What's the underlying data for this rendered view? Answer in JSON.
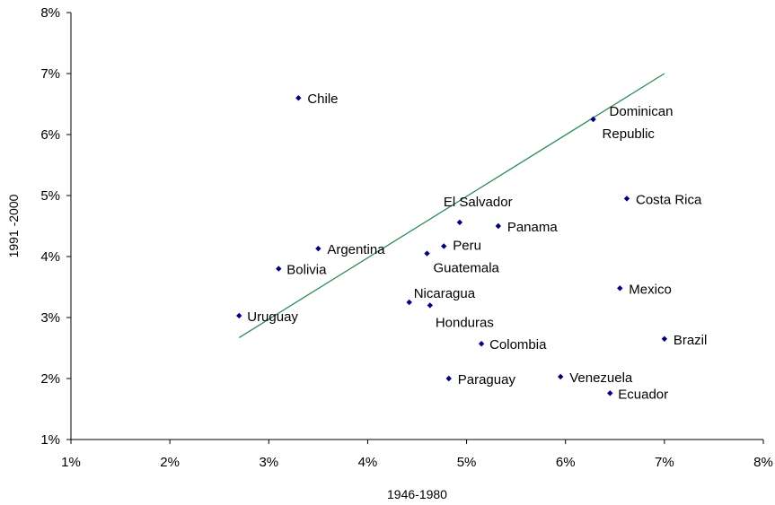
{
  "chart_data": {
    "type": "scatter",
    "title": "",
    "xlabel": "1946-1980",
    "ylabel": "1991 -2000",
    "xlim": [
      1,
      8
    ],
    "ylim": [
      1,
      8
    ],
    "x_ticks": [
      "1%",
      "2%",
      "3%",
      "4%",
      "5%",
      "6%",
      "7%",
      "8%"
    ],
    "y_ticks": [
      "1%",
      "2%",
      "3%",
      "4%",
      "5%",
      "6%",
      "7%",
      "8%"
    ],
    "grid": false,
    "legend": "none",
    "marker_color": "#000080",
    "line_color": "#2e8b57",
    "points": [
      {
        "label": "Chile",
        "x": 3.3,
        "y": 6.6
      },
      {
        "label": "Dominican Republic",
        "x": 6.28,
        "y": 6.25
      },
      {
        "label": "Costa Rica",
        "x": 6.62,
        "y": 4.95
      },
      {
        "label": "El Salvador",
        "x": 4.93,
        "y": 4.56
      },
      {
        "label": "Panama",
        "x": 5.32,
        "y": 4.5
      },
      {
        "label": "Argentina",
        "x": 3.5,
        "y": 4.13
      },
      {
        "label": "Peru",
        "x": 4.77,
        "y": 4.17
      },
      {
        "label": "Guatemala",
        "x": 4.6,
        "y": 4.05
      },
      {
        "label": "Bolivia",
        "x": 3.1,
        "y": 3.8
      },
      {
        "label": "Mexico",
        "x": 6.55,
        "y": 3.48
      },
      {
        "label": "Nicaragua",
        "x": 4.42,
        "y": 3.25
      },
      {
        "label": "Honduras",
        "x": 4.63,
        "y": 3.2
      },
      {
        "label": "Uruguay",
        "x": 2.7,
        "y": 3.03
      },
      {
        "label": "Brazil",
        "x": 7.0,
        "y": 2.65
      },
      {
        "label": "Colombia",
        "x": 5.15,
        "y": 2.57
      },
      {
        "label": "Paraguay",
        "x": 4.82,
        "y": 2.0
      },
      {
        "label": "Venezuela",
        "x": 5.95,
        "y": 2.03
      },
      {
        "label": "Ecuador",
        "x": 6.45,
        "y": 1.76
      }
    ],
    "trend_line": {
      "x": [
        2.7,
        7.0
      ],
      "y": [
        2.67,
        7.0
      ]
    }
  }
}
